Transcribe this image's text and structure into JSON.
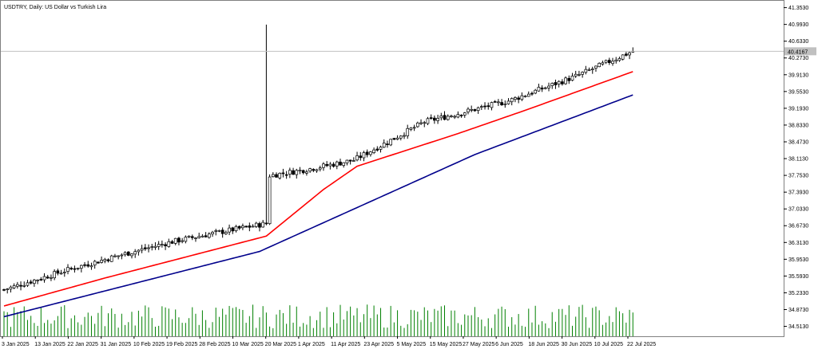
{
  "window": {
    "title": "USDTRY, Daily:  US Dollar vs Turkish Lira"
  },
  "chart_data": {
    "type": "candlestick",
    "title": "USDTRY, Daily:  US Dollar vs Turkish Lira",
    "ylim": [
      34.3,
      41.5
    ],
    "current_price": 40.4167,
    "current_price_label": "40.4167",
    "yticks": [
      34.513,
      34.873,
      35.233,
      35.593,
      35.953,
      36.313,
      36.673,
      37.033,
      37.393,
      37.753,
      38.113,
      38.473,
      38.833,
      39.193,
      39.553,
      39.913,
      40.273,
      40.633,
      40.993,
      41.353
    ],
    "ytick_labels": [
      "34.5130",
      "34.8730",
      "35.2330",
      "35.5930",
      "35.9530",
      "36.3130",
      "36.6730",
      "37.0330",
      "37.3930",
      "37.7530",
      "38.1130",
      "38.4730",
      "38.8330",
      "39.1930",
      "39.5530",
      "39.9130",
      "40.2730",
      "40.6330",
      "40.9930",
      "41.3530"
    ],
    "xtick_labels": [
      "3 Jan 2025",
      "13 Jan 2025",
      "22 Jan 2025",
      "31 Jan 2025",
      "10 Feb 2025",
      "19 Feb 2025",
      "28 Feb 2025",
      "10 Mar 2025",
      "20 Mar 2025",
      "1 Apr 2025",
      "11 Apr 2025",
      "23 Apr 2025",
      "5 May 2025",
      "15 May 2025",
      "27 May 2025",
      "6 Jun 2025",
      "18 Jun 2025",
      "30 Jun 2025",
      "10 Jul 2025",
      "22 Jul 2025"
    ],
    "series": [
      {
        "kind": "candles",
        "anchors": [
          [
            0,
            35.3
          ],
          [
            20,
            35.75
          ],
          [
            35,
            36.05
          ],
          [
            50,
            36.33
          ],
          [
            63,
            36.52
          ],
          [
            78,
            36.72
          ],
          [
            79,
            37.75
          ],
          [
            90,
            37.88
          ],
          [
            104,
            38.08
          ],
          [
            125,
            38.9
          ],
          [
            150,
            39.35
          ],
          [
            170,
            39.88
          ],
          [
            187,
            40.42
          ]
        ]
      },
      {
        "kind": "ma_fast",
        "color": "#ff0000",
        "anchors": [
          [
            0,
            34.95
          ],
          [
            30,
            35.55
          ],
          [
            78,
            36.45
          ],
          [
            95,
            37.45
          ],
          [
            105,
            37.95
          ],
          [
            135,
            38.65
          ],
          [
            155,
            39.15
          ],
          [
            187,
            39.98
          ]
        ]
      },
      {
        "kind": "ma_slow",
        "color": "#00008b",
        "anchors": [
          [
            0,
            34.72
          ],
          [
            76,
            36.12
          ],
          [
            140,
            38.2
          ],
          [
            187,
            39.48
          ]
        ]
      }
    ],
    "spike": {
      "index": 78,
      "high": 40.99
    },
    "volume_color": "#008000"
  }
}
